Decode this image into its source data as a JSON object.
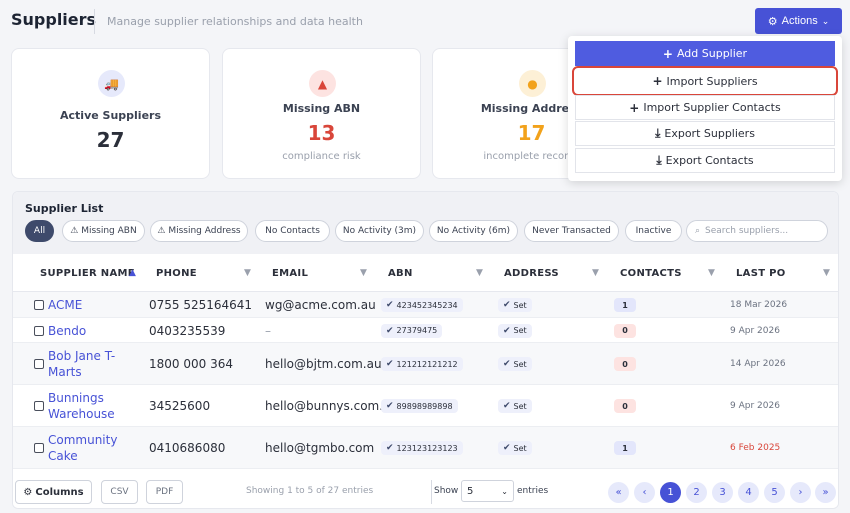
{
  "header": {
    "title": "Suppliers",
    "subtitle": "Manage supplier relationships and data health",
    "actions_label": "Actions"
  },
  "cards": [
    {
      "label": "Active Suppliers",
      "value": "27",
      "note": "",
      "icon": "truck-icon",
      "value_color": "#2b2f3a"
    },
    {
      "label": "Missing ABN",
      "value": "13",
      "note": "compliance risk",
      "icon": "warning-icon",
      "value_color": "#d9463a"
    },
    {
      "label": "Missing Address",
      "value": "17",
      "note": "incomplete records",
      "icon": "map-pin-icon",
      "value_color": "#f2a21b"
    }
  ],
  "actions_menu": [
    {
      "label": "Add Supplier",
      "icon": "plus-icon"
    },
    {
      "label": "Import Suppliers",
      "icon": "plus-icon"
    },
    {
      "label": "Import Supplier Contacts",
      "icon": "plus-icon"
    },
    {
      "label": "Export Suppliers",
      "icon": "download-icon"
    },
    {
      "label": "Export Contacts",
      "icon": "download-icon"
    }
  ],
  "list": {
    "title": "Supplier List",
    "filters": [
      "All",
      "⚠ Missing ABN",
      "⚠ Missing Address",
      "No Contacts",
      "No Activity (3m)",
      "No Activity (6m)",
      "Never Transacted",
      "Inactive"
    ],
    "search_placeholder": "Search suppliers...",
    "columns": [
      "SUPPLIER NAME",
      "PHONE",
      "EMAIL",
      "ABN",
      "ADDRESS",
      "CONTACTS",
      "LAST PO"
    ],
    "rows": [
      {
        "name": "ACME",
        "phone": "0755 525164641",
        "email": "wg@acme.com.au",
        "abn": "423452345234",
        "address": "Set",
        "contacts": "1",
        "last_po": "18 Mar 2026"
      },
      {
        "name": "Bendo",
        "phone": "0403235539",
        "email": "–",
        "abn": "27379475",
        "address": "Set",
        "contacts": "0",
        "last_po": "9 Apr 2026"
      },
      {
        "name": "Bob Jane T-Marts",
        "phone": "1800 000 364",
        "email": "hello@bjtm.com.au",
        "abn": "121212121212",
        "address": "Set",
        "contacts": "0",
        "last_po": "14 Apr 2026"
      },
      {
        "name": "Bunnings Warehouse",
        "phone": "34525600",
        "email": "hello@bunnys.com.au",
        "abn": "89898989898",
        "address": "Set",
        "contacts": "0",
        "last_po": "9 Apr 2026"
      },
      {
        "name": "Community Cake",
        "phone": "0410686080",
        "email": "hello@tgmbo.com",
        "abn": "123123123123",
        "address": "Set",
        "contacts": "1",
        "last_po": "6 Feb 2025"
      }
    ]
  },
  "footer": {
    "columns_label": "Columns",
    "csv_label": "CSV",
    "pdf_label": "PDF",
    "entries_info": "Showing 1 to 5 of 27 entries",
    "show_label": "Show",
    "page_size": "5",
    "entries_label": "entries",
    "pages": [
      "1",
      "2",
      "3",
      "4",
      "5"
    ],
    "current_page": "1"
  },
  "colors": {
    "accent": "#4752d6",
    "danger": "#d9463a",
    "warning": "#f2a21b"
  }
}
